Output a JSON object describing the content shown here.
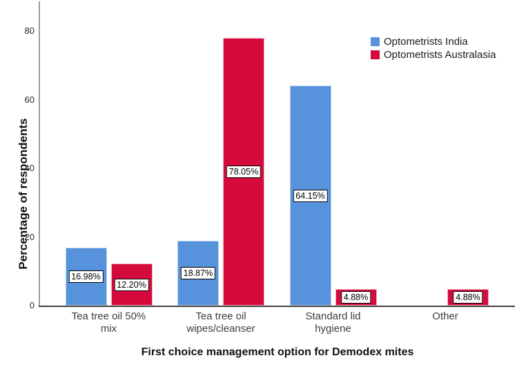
{
  "chart_data": {
    "type": "bar",
    "title": "",
    "xlabel": "First choice management option for Demodex mites",
    "ylabel": "Percentage of respondents",
    "categories": [
      "Tea tree oil 50%\nmix",
      "Tea tree oil\nwipes/cleanser",
      "Standard lid\nhygiene",
      "Other"
    ],
    "series": [
      {
        "name": "Optometrists India",
        "color": "#5792DC",
        "border_color": "#b9d2f1",
        "values": [
          16.98,
          18.87,
          64.15,
          null
        ],
        "labels": [
          "16.98%",
          "18.87%",
          "64.15%",
          null
        ]
      },
      {
        "name": "Optometrists Australasia",
        "color": "#D40A3C",
        "border_color": "#f2afc1",
        "values": [
          12.2,
          78.05,
          4.88,
          4.88
        ],
        "labels": [
          "12.20%",
          "78.05%",
          "4.88%",
          "4.88%"
        ]
      }
    ],
    "yticks": [
      0,
      20,
      40,
      60,
      80
    ],
    "ylim": [
      0,
      88.7
    ],
    "grid": false,
    "legend_position": "top-right",
    "axis_color_y": "#9a9a9a",
    "axis_color_x": "#3f3f3f"
  }
}
